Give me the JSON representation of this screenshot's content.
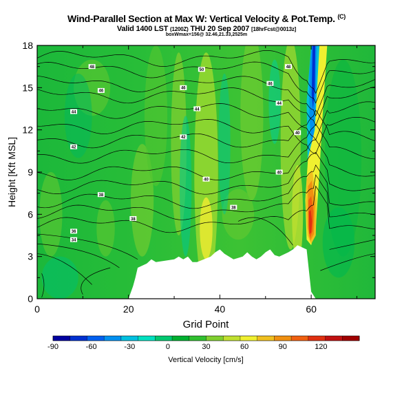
{
  "title": {
    "main": "Wind-Parallel Section at Max W: Vertical Velocity & Pot.Temp.",
    "unit": "(C)",
    "valid": "Valid 1400 LST",
    "valid_z": "(1200Z)",
    "date": "THU 20 Sep 2007",
    "fcst": "[18hrFcst@0013z]",
    "box": "boxWmax=156@ 32.46,21.33,2525m"
  },
  "colors": {
    "palette": [
      "#0000a0",
      "#0030d0",
      "#0060f0",
      "#0090f0",
      "#00c0e0",
      "#00e0c0",
      "#00c870",
      "#00b030",
      "#30c030",
      "#80d030",
      "#c0e030",
      "#f0f030",
      "#f0c020",
      "#f09010",
      "#f06010",
      "#e03010",
      "#c01010",
      "#a00000"
    ],
    "terrain": "#ffffff"
  },
  "chart_data": {
    "type": "heatmap",
    "xlabel": "Grid Point",
    "ylabel": "Height [Kft MSL]",
    "xlim": [
      0,
      74
    ],
    "ylim": [
      0,
      18
    ],
    "x_ticks": [
      "0",
      "20",
      "40",
      "60"
    ],
    "y_ticks": [
      "0",
      "3",
      "6",
      "9",
      "12",
      "15",
      "18"
    ],
    "colorbar": {
      "label": "Vertical Velocity [cm/s]",
      "range": [
        -90,
        150
      ],
      "tick_labels": [
        "-90",
        "-60",
        "-30",
        "0",
        "30",
        "60",
        "90",
        "120"
      ]
    },
    "terrain_profile": {
      "x": [
        0,
        20,
        21,
        21.5,
        22,
        24,
        25,
        26,
        30,
        31,
        32,
        33,
        34,
        35,
        38,
        39,
        40,
        41,
        42,
        43,
        45,
        46,
        47,
        48,
        49,
        50,
        51,
        52,
        53,
        55,
        56,
        57,
        59,
        60,
        61,
        62,
        63,
        64,
        65,
        66,
        68,
        70,
        74
      ],
      "height": [
        0,
        0,
        0.9,
        1.5,
        2.2,
        2.5,
        2.8,
        2.6,
        2.8,
        3.0,
        2.8,
        3.0,
        2.6,
        2.6,
        3.0,
        3.3,
        3.5,
        3.2,
        3.0,
        2.8,
        3.0,
        3.3,
        3.0,
        2.8,
        3.0,
        3.3,
        3.5,
        3.1,
        3.0,
        3.3,
        3.5,
        3.8,
        3.5,
        0.5,
        0,
        0,
        0,
        0,
        0,
        0,
        0,
        0,
        0
      ]
    },
    "updraft_core": {
      "x": 60,
      "max_value": 156,
      "height_range": [
        4,
        18
      ]
    },
    "downdraft_core": {
      "x": 60.5,
      "min_value": -90,
      "height_range": [
        9,
        18
      ]
    },
    "theta_contour_labels": [
      {
        "x": 12,
        "y": 16.5,
        "text": "48"
      },
      {
        "x": 36,
        "y": 16.3,
        "text": "50"
      },
      {
        "x": 55,
        "y": 16.5,
        "text": "48"
      },
      {
        "x": 14,
        "y": 14.8,
        "text": "46"
      },
      {
        "x": 32,
        "y": 15.0,
        "text": "46"
      },
      {
        "x": 51,
        "y": 15.3,
        "text": "46"
      },
      {
        "x": 53,
        "y": 13.9,
        "text": "44"
      },
      {
        "x": 8,
        "y": 13.3,
        "text": "44"
      },
      {
        "x": 35,
        "y": 13.5,
        "text": "44"
      },
      {
        "x": 57,
        "y": 11.8,
        "text": "40"
      },
      {
        "x": 32,
        "y": 11.5,
        "text": "42"
      },
      {
        "x": 8,
        "y": 10.8,
        "text": "42"
      },
      {
        "x": 53,
        "y": 9.0,
        "text": "40"
      },
      {
        "x": 37,
        "y": 8.5,
        "text": "40"
      },
      {
        "x": 14,
        "y": 7.4,
        "text": "38"
      },
      {
        "x": 43,
        "y": 6.5,
        "text": "38"
      },
      {
        "x": 21,
        "y": 5.7,
        "text": "38"
      },
      {
        "x": 8,
        "y": 4.8,
        "text": "36"
      },
      {
        "x": 8,
        "y": 4.2,
        "text": "34"
      }
    ]
  }
}
